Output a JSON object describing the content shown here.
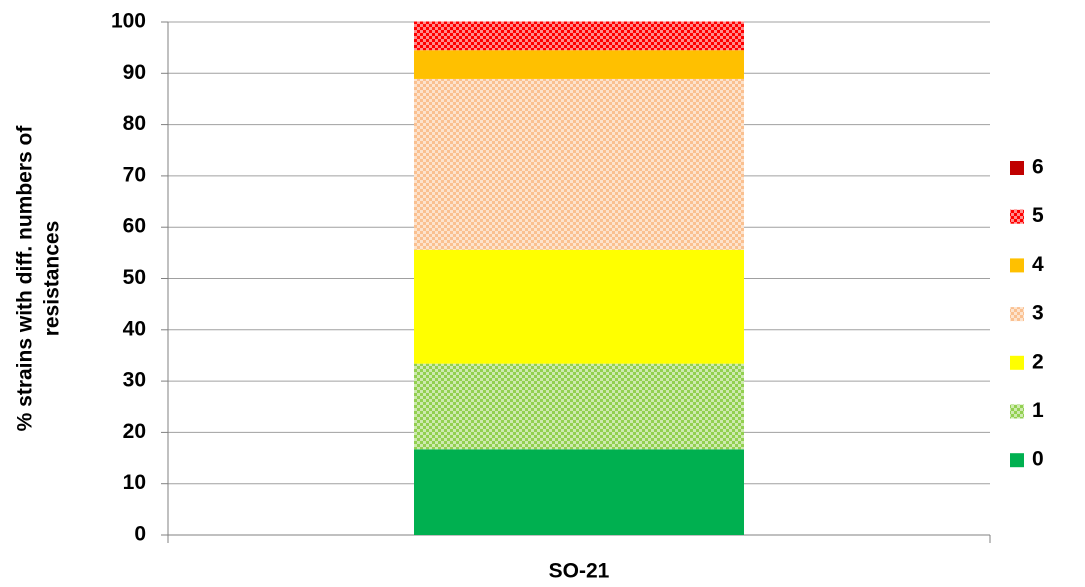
{
  "chart_data": {
    "type": "stacked_bar",
    "categories": [
      "SO-21"
    ],
    "y_label": [
      "% strains with diff. numbers of",
      "resistances"
    ],
    "series": [
      {
        "name": "0",
        "color": "#00b050",
        "values": [
          16.7
        ]
      },
      {
        "name": "1",
        "color": "#92d050",
        "pattern": true,
        "values": [
          16.7
        ]
      },
      {
        "name": "2",
        "color": "#ffff00",
        "values": [
          22.2
        ]
      },
      {
        "name": "3",
        "color": "#fac090",
        "pattern": true,
        "values": [
          33.3
        ]
      },
      {
        "name": "4",
        "color": "#ffc000",
        "values": [
          5.6
        ]
      },
      {
        "name": "5",
        "color": "#ff0000",
        "pattern": true,
        "values": [
          5.6
        ]
      },
      {
        "name": "6",
        "color": "#c00000",
        "values": [
          0
        ]
      }
    ],
    "ylim": [
      0,
      100
    ],
    "yticks": [
      0,
      10,
      20,
      30,
      40,
      50,
      60,
      70,
      80,
      90,
      100
    ],
    "grid": true,
    "legend": "right"
  }
}
